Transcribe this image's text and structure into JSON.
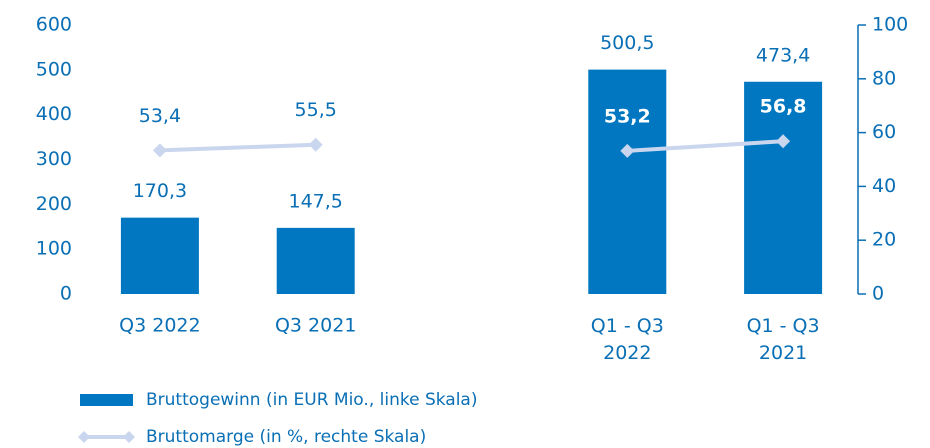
{
  "chart_data": {
    "type": "bar-line",
    "categories": [
      "Q3 2022",
      "Q3 2021",
      null,
      "Q1 - Q3\n2022",
      "Q1 - Q3\n2021"
    ],
    "series": [
      {
        "name": "Bruttogewinn (in EUR Mio., linke Skala)",
        "type": "bar",
        "color": "#0077c0",
        "values": [
          170.3,
          147.5,
          null,
          500.5,
          473.4
        ],
        "value_labels": [
          "170,3",
          "147,5",
          null,
          "500,5",
          "473,4"
        ]
      },
      {
        "name": "Bruttomarge (in %, rechte Skala)",
        "type": "line",
        "axis": "y2",
        "color": "#c9d6ee",
        "values": [
          53.4,
          55.5,
          null,
          53.2,
          56.8
        ],
        "value_labels": [
          "53,4",
          "55,5",
          null,
          "53,2",
          "56,8"
        ]
      }
    ],
    "ylim": [
      0,
      600
    ],
    "yticks": [
      0,
      100,
      200,
      300,
      400,
      500,
      600
    ],
    "y2lim": [
      0,
      100
    ],
    "y2ticks": [
      0,
      20,
      40,
      60,
      80,
      100
    ]
  }
}
